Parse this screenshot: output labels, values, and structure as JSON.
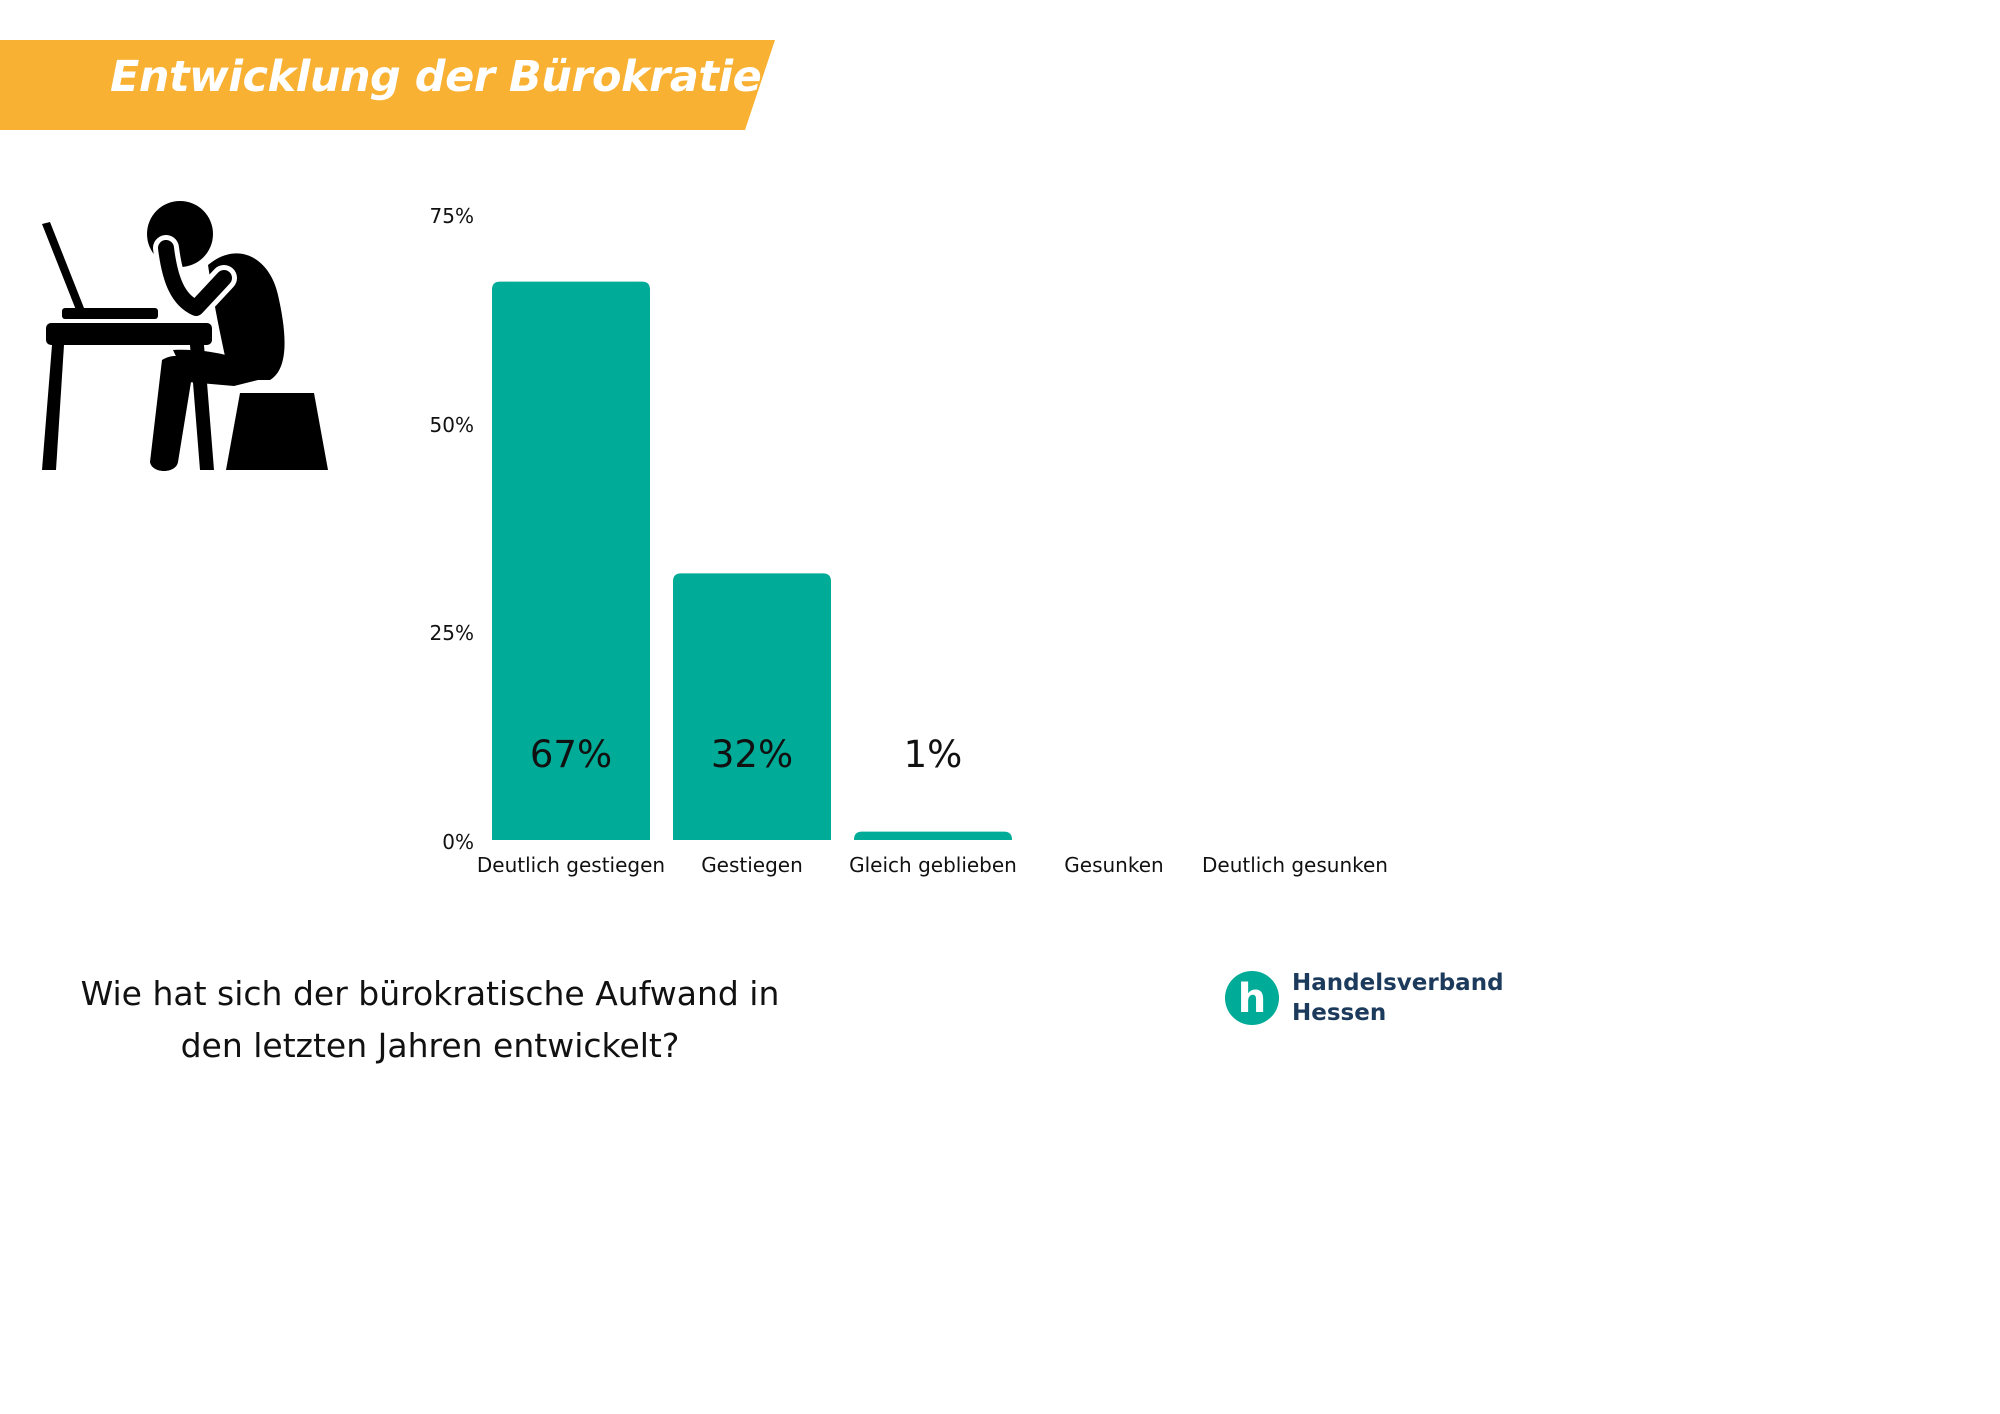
{
  "title": "Entwicklung der Bürokratie",
  "question": {
    "line1": "Wie hat sich der bürokratische Aufwand in",
    "line2": "den letzten Jahren entwickelt?"
  },
  "brand": {
    "line1": "Handelsverband",
    "line2": "Hessen",
    "logo_letter": "h"
  },
  "colors": {
    "banner": "#f8b133",
    "bar": "#00ab97",
    "logo": "#00ab97",
    "brand_text": "#1c3a5b"
  },
  "illustration": "person-working-at-laptop-icon",
  "chart_data": {
    "type": "bar",
    "categories": [
      "Deutlich gestiegen",
      "Gestiegen",
      "Gleich geblieben",
      "Gesunken",
      "Deutlich gesunken"
    ],
    "values": [
      67,
      32,
      1,
      0,
      0
    ],
    "data_labels": [
      "67%",
      "32%",
      "1%",
      "",
      ""
    ],
    "y_ticks": [
      0,
      25,
      50,
      75
    ],
    "y_tick_labels": [
      "0%",
      "25%",
      "50%",
      "75%"
    ],
    "ylim": [
      0,
      75
    ],
    "grid": false,
    "legend": "none"
  }
}
